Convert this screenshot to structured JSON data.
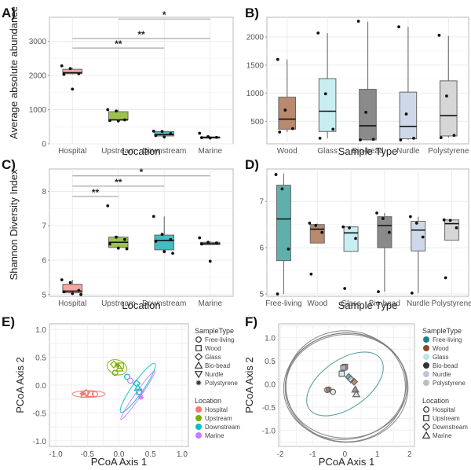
{
  "chart_data": [
    {
      "panel": "A)",
      "type": "box",
      "xlabel": "Location",
      "ylabel": "Average absolute abundance",
      "categories": [
        "Hospital",
        "Upstream",
        "Downstream",
        "Marine"
      ],
      "ylim": [
        0,
        3700
      ],
      "yticks": [
        0,
        1000,
        2000,
        3000
      ],
      "colors": [
        "#f4a6a0",
        "#9cc24f",
        "#43bcc4",
        "#c9a5e8"
      ],
      "boxes": [
        {
          "q1": 2050,
          "median": 2080,
          "q3": 2180,
          "low": 2030,
          "high": 2220
        },
        {
          "q1": 700,
          "median": 700,
          "q3": 940,
          "low": 670,
          "high": 1000
        },
        {
          "q1": 230,
          "median": 270,
          "q3": 360,
          "low": 190,
          "high": 370
        },
        {
          "q1": 180,
          "median": 190,
          "q3": 200,
          "low": 170,
          "high": 210
        }
      ],
      "points": [
        [
          2280,
          2200,
          2050,
          2030,
          1600
        ],
        [
          1000,
          960,
          700,
          680,
          670
        ],
        [
          370,
          360,
          300,
          240,
          200
        ],
        [
          310,
          210,
          190,
          180,
          170
        ]
      ],
      "significance": [
        {
          "from": 1,
          "to": 3,
          "label": "*",
          "y": 3650
        },
        {
          "from": 0,
          "to": 3,
          "label": "**",
          "y": 3080
        },
        {
          "from": 0,
          "to": 2,
          "label": "**",
          "y": 2800
        }
      ]
    },
    {
      "panel": "B)",
      "type": "box",
      "xlabel": "Sample Type",
      "ylabel": "",
      "categories": [
        "Wood",
        "Glass",
        "Bio-bead",
        "Nurdle",
        "Polystyrene"
      ],
      "ylim": [
        100,
        2350
      ],
      "yticks": [
        500,
        1000,
        1500,
        2000
      ],
      "colors": [
        "#b98a6e",
        "#c9eef2",
        "#8a8a8a",
        "#cfd8e8",
        "#d6d6d6"
      ],
      "boxes": [
        {
          "q1": 360,
          "median": 540,
          "q3": 930,
          "low": 310,
          "high": 1600
        },
        {
          "q1": 320,
          "median": 680,
          "q3": 1260,
          "low": 200,
          "high": 2070
        },
        {
          "q1": 170,
          "median": 420,
          "q3": 1070,
          "low": 170,
          "high": 2270
        },
        {
          "q1": 190,
          "median": 410,
          "q3": 1020,
          "low": 170,
          "high": 2180
        },
        {
          "q1": 240,
          "median": 600,
          "q3": 1220,
          "low": 210,
          "high": 2020
        }
      ],
      "points": [
        [
          1600,
          700,
          370,
          310
        ],
        [
          2070,
          990,
          360,
          200
        ],
        [
          2280,
          660,
          180,
          170
        ],
        [
          2180,
          630,
          200,
          170
        ],
        [
          2030,
          950,
          250,
          210
        ]
      ]
    },
    {
      "panel": "C)",
      "type": "box",
      "xlabel": "Location",
      "ylabel": "Shannon Diversity Index",
      "categories": [
        "Hospital",
        "Upstream",
        "Downstream",
        "Marine"
      ],
      "ylim": [
        4.95,
        8.65
      ],
      "yticks": [
        5,
        6,
        7,
        8
      ],
      "colors": [
        "#f4a6a0",
        "#9cc24f",
        "#43bcc4",
        "#c9a5e8"
      ],
      "boxes": [
        {
          "q1": 5.05,
          "median": 5.1,
          "q3": 5.3,
          "low": 5.0,
          "high": 5.43
        },
        {
          "q1": 6.37,
          "median": 6.52,
          "q3": 6.67,
          "low": 6.33,
          "high": 6.7
        },
        {
          "q1": 6.3,
          "median": 6.57,
          "q3": 6.73,
          "low": 6.2,
          "high": 7.27
        },
        {
          "q1": 6.45,
          "median": 6.48,
          "q3": 6.52,
          "low": 6.45,
          "high": 6.55
        }
      ],
      "points": [
        [
          5.43,
          5.35,
          5.12,
          5.08,
          5.03,
          5.0
        ],
        [
          7.58,
          6.67,
          6.6,
          6.47,
          6.35,
          6.33
        ],
        [
          7.27,
          6.75,
          6.6,
          6.55,
          6.25,
          6.2
        ],
        [
          6.65,
          6.52,
          6.5,
          6.47,
          5.97
        ]
      ],
      "significance": [
        {
          "from": 0,
          "to": 3,
          "label": "*",
          "y": 8.45
        },
        {
          "from": 0,
          "to": 2,
          "label": "**",
          "y": 8.15
        },
        {
          "from": 0,
          "to": 1,
          "label": "**",
          "y": 7.85
        }
      ]
    },
    {
      "panel": "D)",
      "type": "box",
      "xlabel": "Sample Type",
      "ylabel": "",
      "categories": [
        "Free-living",
        "Wood",
        "Glass",
        "Bio-bead",
        "Nurdle",
        "Polystyrene"
      ],
      "ylim": [
        4.95,
        7.7
      ],
      "yticks": [
        5,
        6,
        7
      ],
      "colors": [
        "#5fb0ad",
        "#b98a6e",
        "#c9eef2",
        "#8a8a8a",
        "#cfd8e8",
        "#d6d6d6"
      ],
      "boxes": [
        {
          "q1": 5.72,
          "median": 6.62,
          "q3": 7.35,
          "low": 5.0,
          "high": 7.6
        },
        {
          "q1": 6.1,
          "median": 6.4,
          "q3": 6.5,
          "low": 6.1,
          "high": 6.52
        },
        {
          "q1": 5.92,
          "median": 6.32,
          "q3": 6.45,
          "low": 5.92,
          "high": 6.45
        },
        {
          "q1": 6.0,
          "median": 6.48,
          "q3": 6.67,
          "low": 5.05,
          "high": 6.75
        },
        {
          "q1": 5.93,
          "median": 6.38,
          "q3": 6.57,
          "low": 5.02,
          "high": 6.67
        },
        {
          "q1": 6.16,
          "median": 6.52,
          "q3": 6.6,
          "low": 6.16,
          "high": 6.6
        }
      ],
      "points": [
        [
          7.58,
          7.27,
          5.97,
          5.0
        ],
        [
          6.53,
          6.48,
          6.33,
          5.43
        ],
        [
          6.45,
          6.43,
          6.2,
          5.12
        ],
        [
          6.75,
          6.63,
          6.33,
          5.05
        ],
        [
          6.67,
          6.53,
          6.23,
          5.02
        ],
        [
          6.6,
          6.59,
          6.43,
          5.35
        ]
      ]
    },
    {
      "panel": "E)",
      "type": "scatter",
      "xlabel": "PCoA Axis 1",
      "ylabel": "PCoA Axis 2",
      "xlim": [
        -1.1,
        1.1
      ],
      "ylim": [
        -1.1,
        1.1
      ],
      "xticks": [
        "-1.0",
        "-0.5",
        "0.0",
        "0.5",
        "1.0"
      ],
      "yticks": [
        "-1.0",
        "-0.5",
        "0.0",
        "0.5",
        "1.0"
      ],
      "legend_shape_title": "SampleType",
      "legend_shape": [
        {
          "label": "Free-living",
          "shape": "circle"
        },
        {
          "label": "Wood",
          "shape": "square"
        },
        {
          "label": "Glass",
          "shape": "diamond"
        },
        {
          "label": "Bio-bead",
          "shape": "triangle"
        },
        {
          "label": "Nurdle",
          "shape": "triangle-down"
        },
        {
          "label": "Polystyrene",
          "shape": "asterisk"
        }
      ],
      "legend_color_title": "Location",
      "legend_color": [
        {
          "label": "Hospital",
          "color": "#f8766d"
        },
        {
          "label": "Upstream",
          "color": "#7cae00"
        },
        {
          "label": "Downstream",
          "color": "#00bfc4"
        },
        {
          "label": "Marine",
          "color": "#c77cff"
        }
      ],
      "points": [
        {
          "x": -0.58,
          "y": -0.15,
          "loc": 0,
          "shape": "asterisk"
        },
        {
          "x": -0.55,
          "y": -0.17,
          "loc": 0,
          "shape": "triangle"
        },
        {
          "x": -0.52,
          "y": -0.14,
          "loc": 0,
          "shape": "diamond"
        },
        {
          "x": -0.45,
          "y": -0.16,
          "loc": 0,
          "shape": "square"
        },
        {
          "x": -0.38,
          "y": -0.16,
          "loc": 0,
          "shape": "circle"
        },
        {
          "x": -0.08,
          "y": 0.37,
          "loc": 1,
          "shape": "diamond"
        },
        {
          "x": -0.03,
          "y": 0.36,
          "loc": 1,
          "shape": "asterisk"
        },
        {
          "x": 0.03,
          "y": 0.35,
          "loc": 1,
          "shape": "square"
        },
        {
          "x": -0.06,
          "y": 0.22,
          "loc": 1,
          "shape": "circle"
        },
        {
          "x": 0.01,
          "y": 0.3,
          "loc": 1,
          "shape": "triangle"
        },
        {
          "x": 0.13,
          "y": 0.15,
          "loc": 2,
          "shape": "circle"
        },
        {
          "x": 0.28,
          "y": 0.03,
          "loc": 2,
          "shape": "diamond"
        },
        {
          "x": 0.3,
          "y": -0.05,
          "loc": 2,
          "shape": "triangle"
        },
        {
          "x": 0.32,
          "y": -0.12,
          "loc": 2,
          "shape": "square"
        },
        {
          "x": 0.18,
          "y": 0.08,
          "loc": 3,
          "shape": "circle"
        },
        {
          "x": 0.33,
          "y": -0.15,
          "loc": 3,
          "shape": "triangle-down"
        },
        {
          "x": 0.35,
          "y": -0.22,
          "loc": 3,
          "shape": "asterisk"
        }
      ],
      "ellipses": [
        {
          "loc": 0,
          "cx": -0.48,
          "cy": -0.16,
          "rx": 0.26,
          "ry": 0.06,
          "angle": 0
        },
        {
          "loc": 1,
          "cx": -0.03,
          "cy": 0.32,
          "rx": 0.16,
          "ry": 0.13,
          "angle": 20
        },
        {
          "loc": 2,
          "cx": 0.3,
          "cy": -0.05,
          "rx": 0.47,
          "ry": 0.1,
          "angle": -55
        },
        {
          "loc": 3,
          "cx": 0.3,
          "cy": -0.18,
          "rx": 0.47,
          "ry": 0.05,
          "angle": -55
        }
      ]
    },
    {
      "panel": "F)",
      "type": "scatter",
      "xlabel": "PCoA Axis 1",
      "ylabel": "PCoA Axis 2",
      "xlim": [
        -2.05,
        2.15
      ],
      "ylim": [
        -1.35,
        1.3
      ],
      "xticks": [
        "-2",
        "-1",
        "0",
        "1",
        "2"
      ],
      "yticks": [
        "-1.0",
        "-0.5",
        "0.0",
        "0.5",
        "1.0"
      ],
      "legend_color_title": "SampleType",
      "legend_color": [
        {
          "label": "Free-living",
          "color": "#1f7f8c"
        },
        {
          "label": "Wood",
          "color": "#8b4a24"
        },
        {
          "label": "Glass",
          "color": "#b8e6ec"
        },
        {
          "label": "Bio-bead",
          "color": "#333333"
        },
        {
          "label": "Nurdle",
          "color": "#b9c6dc"
        },
        {
          "label": "Polystyrene",
          "color": "#bdbdbd"
        }
      ],
      "legend_shape_title": "Location",
      "legend_shape": [
        {
          "label": "Hospital",
          "shape": "circle"
        },
        {
          "label": "Upstream",
          "shape": "square"
        },
        {
          "label": "Downstream",
          "shape": "diamond"
        },
        {
          "label": "Marine",
          "shape": "triangle"
        }
      ],
      "points": [
        {
          "x": -0.55,
          "y": -0.13,
          "type": 5,
          "shape": "circle"
        },
        {
          "x": -0.5,
          "y": -0.12,
          "type": 1,
          "shape": "circle"
        },
        {
          "x": -0.37,
          "y": -0.17,
          "type": 2,
          "shape": "circle"
        },
        {
          "x": 0.0,
          "y": 0.37,
          "type": 1,
          "shape": "square"
        },
        {
          "x": -0.05,
          "y": 0.35,
          "type": 4,
          "shape": "square"
        },
        {
          "x": -0.1,
          "y": 0.22,
          "type": 2,
          "shape": "square"
        },
        {
          "x": 0.12,
          "y": 0.15,
          "type": 0,
          "shape": "diamond"
        },
        {
          "x": 0.18,
          "y": 0.1,
          "type": 2,
          "shape": "diamond"
        },
        {
          "x": 0.28,
          "y": 0.05,
          "type": 1,
          "shape": "diamond"
        },
        {
          "x": 0.32,
          "y": -0.12,
          "type": 1,
          "shape": "triangle"
        },
        {
          "x": 0.35,
          "y": -0.22,
          "type": 4,
          "shape": "triangle"
        }
      ],
      "ellipses": [
        {
          "type": 0,
          "cx": 0.0,
          "cy": 0.0,
          "rx": 1.35,
          "ry": 0.52,
          "angle": -35
        },
        {
          "type": 1,
          "cx": 0.0,
          "cy": -0.05,
          "rx": 1.9,
          "ry": 1.15,
          "angle": -8
        },
        {
          "type": 3,
          "cx": 0.02,
          "cy": -0.05,
          "rx": 1.85,
          "ry": 1.2,
          "angle": 5
        },
        {
          "type": 4,
          "cx": 0.05,
          "cy": -0.05,
          "rx": 1.88,
          "ry": 1.12,
          "angle": -3
        },
        {
          "type": 5,
          "cx": 0.05,
          "cy": -0.08,
          "rx": 1.9,
          "ry": 1.18,
          "angle": 0
        }
      ]
    }
  ]
}
